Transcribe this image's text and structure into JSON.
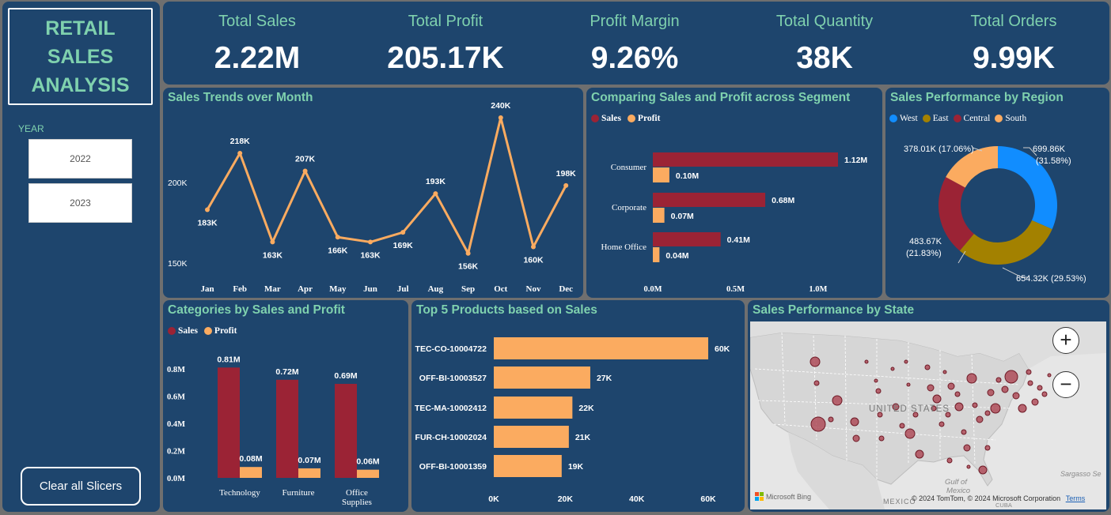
{
  "sidebar": {
    "logo_lines": [
      "RETAIL",
      "SALES",
      "ANALYSIS"
    ],
    "year_label": "YEAR",
    "years": [
      "2022",
      "2023"
    ],
    "clear_label": "Clear all Slicers"
  },
  "kpis": [
    {
      "label": "Total Sales",
      "value": "2.22M"
    },
    {
      "label": "Total Profit",
      "value": "205.17K"
    },
    {
      "label": "Profit Margin",
      "value": "9.26%"
    },
    {
      "label": "Total Quantity",
      "value": "38K"
    },
    {
      "label": "Total Orders",
      "value": "9.99K"
    }
  ],
  "colors": {
    "panel": "#1e456d",
    "accent": "#7fd1ae",
    "sales": "#9b2335",
    "profit": "#fbab60",
    "west": "#118dff",
    "east": "#a38100",
    "central": "#9b2335",
    "south": "#fbab60"
  },
  "monthly": {
    "title": "Sales Trends over Month",
    "chart_data": {
      "type": "line",
      "categories": [
        "Jan",
        "Feb",
        "Mar",
        "Apr",
        "May",
        "Jun",
        "Jul",
        "Aug",
        "Sep",
        "Oct",
        "Nov",
        "Dec"
      ],
      "values": [
        183,
        218,
        163,
        207,
        166,
        163,
        169,
        193,
        156,
        240,
        160,
        198
      ],
      "labels": [
        "183K",
        "218K",
        "163K",
        "207K",
        "166K",
        "163K",
        "169K",
        "193K",
        "156K",
        "240K",
        "160K",
        "198K"
      ],
      "yticks": [
        "150K",
        "200K"
      ],
      "ylim": [
        150,
        240
      ]
    }
  },
  "segment": {
    "title": "Comparing Sales and Profit across Segment",
    "legend": [
      "Sales",
      "Profit"
    ],
    "chart_data": {
      "type": "bar",
      "orientation": "horizontal",
      "categories": [
        "Consumer",
        "Corporate",
        "Home Office"
      ],
      "series": [
        {
          "name": "Sales",
          "values": [
            1.12,
            0.68,
            0.41
          ],
          "labels": [
            "1.12M",
            "0.68M",
            "0.41M"
          ]
        },
        {
          "name": "Profit",
          "values": [
            0.1,
            0.07,
            0.04
          ],
          "labels": [
            "0.10M",
            "0.07M",
            "0.04M"
          ]
        }
      ],
      "xticks": [
        "0.0M",
        "0.5M",
        "1.0M"
      ],
      "xlim": [
        0,
        1.12
      ]
    }
  },
  "region": {
    "title": "Sales Performance by Region",
    "legend": [
      "West",
      "East",
      "Central",
      "South"
    ],
    "chart_data": {
      "type": "pie",
      "style": "donut",
      "categories": [
        "West",
        "East",
        "Central",
        "South"
      ],
      "values": [
        699.86,
        654.32,
        483.67,
        378.01
      ],
      "labels": [
        "699.86K (31.58%)",
        "654.32K (29.53%)",
        "483.67K (21.83%)",
        "378.01K (17.06%)"
      ]
    },
    "label_lines": {
      "west": [
        "699.86K",
        "(31.58%)"
      ],
      "east": "654.32K (29.53%)",
      "central": [
        "483.67K",
        "(21.83%)"
      ],
      "south": "378.01K (17.06%)"
    }
  },
  "categories": {
    "title": "Categories by Sales and Profit",
    "legend": [
      "Sales",
      "Profit"
    ],
    "chart_data": {
      "type": "bar",
      "categories": [
        "Technology",
        "Furniture",
        "Office Supplies"
      ],
      "category_lines": [
        [
          "Technology"
        ],
        [
          "Furniture"
        ],
        [
          "Office",
          "Supplies"
        ]
      ],
      "series": [
        {
          "name": "Sales",
          "values": [
            0.81,
            0.72,
            0.69
          ],
          "labels": [
            "0.81M",
            "0.72M",
            "0.69M"
          ]
        },
        {
          "name": "Profit",
          "values": [
            0.08,
            0.07,
            0.06
          ],
          "labels": [
            "0.08M",
            "0.07M",
            "0.06M"
          ]
        }
      ],
      "yticks": [
        "0.0M",
        "0.2M",
        "0.4M",
        "0.6M",
        "0.8M"
      ],
      "ylim": [
        0,
        0.8
      ]
    }
  },
  "products": {
    "title": "Top 5 Products based on Sales",
    "chart_data": {
      "type": "bar",
      "orientation": "horizontal",
      "categories": [
        "TEC-CO-10004722",
        "OFF-BI-10003527",
        "TEC-MA-10002412",
        "FUR-CH-10002024",
        "OFF-BI-10001359"
      ],
      "values": [
        60,
        27,
        22,
        21,
        19
      ],
      "labels": [
        "60K",
        "27K",
        "22K",
        "21K",
        "19K"
      ],
      "xticks": [
        "0K",
        "20K",
        "40K",
        "60K"
      ],
      "xlim": [
        0,
        60
      ]
    }
  },
  "state": {
    "title": "Sales Performance by State",
    "map_labels": {
      "country": "UNITED STATES",
      "gulf": "Gulf of Mexico",
      "mexico": "MEXICO",
      "sargasso": "Sargasso Se",
      "cuba": "CUBA"
    },
    "zoom_in": "+",
    "zoom_out": "−",
    "provider": "Microsoft Bing",
    "copyright": "© 2024 TomTom, © 2024 Microsoft Corporation",
    "terms": "Terms"
  }
}
